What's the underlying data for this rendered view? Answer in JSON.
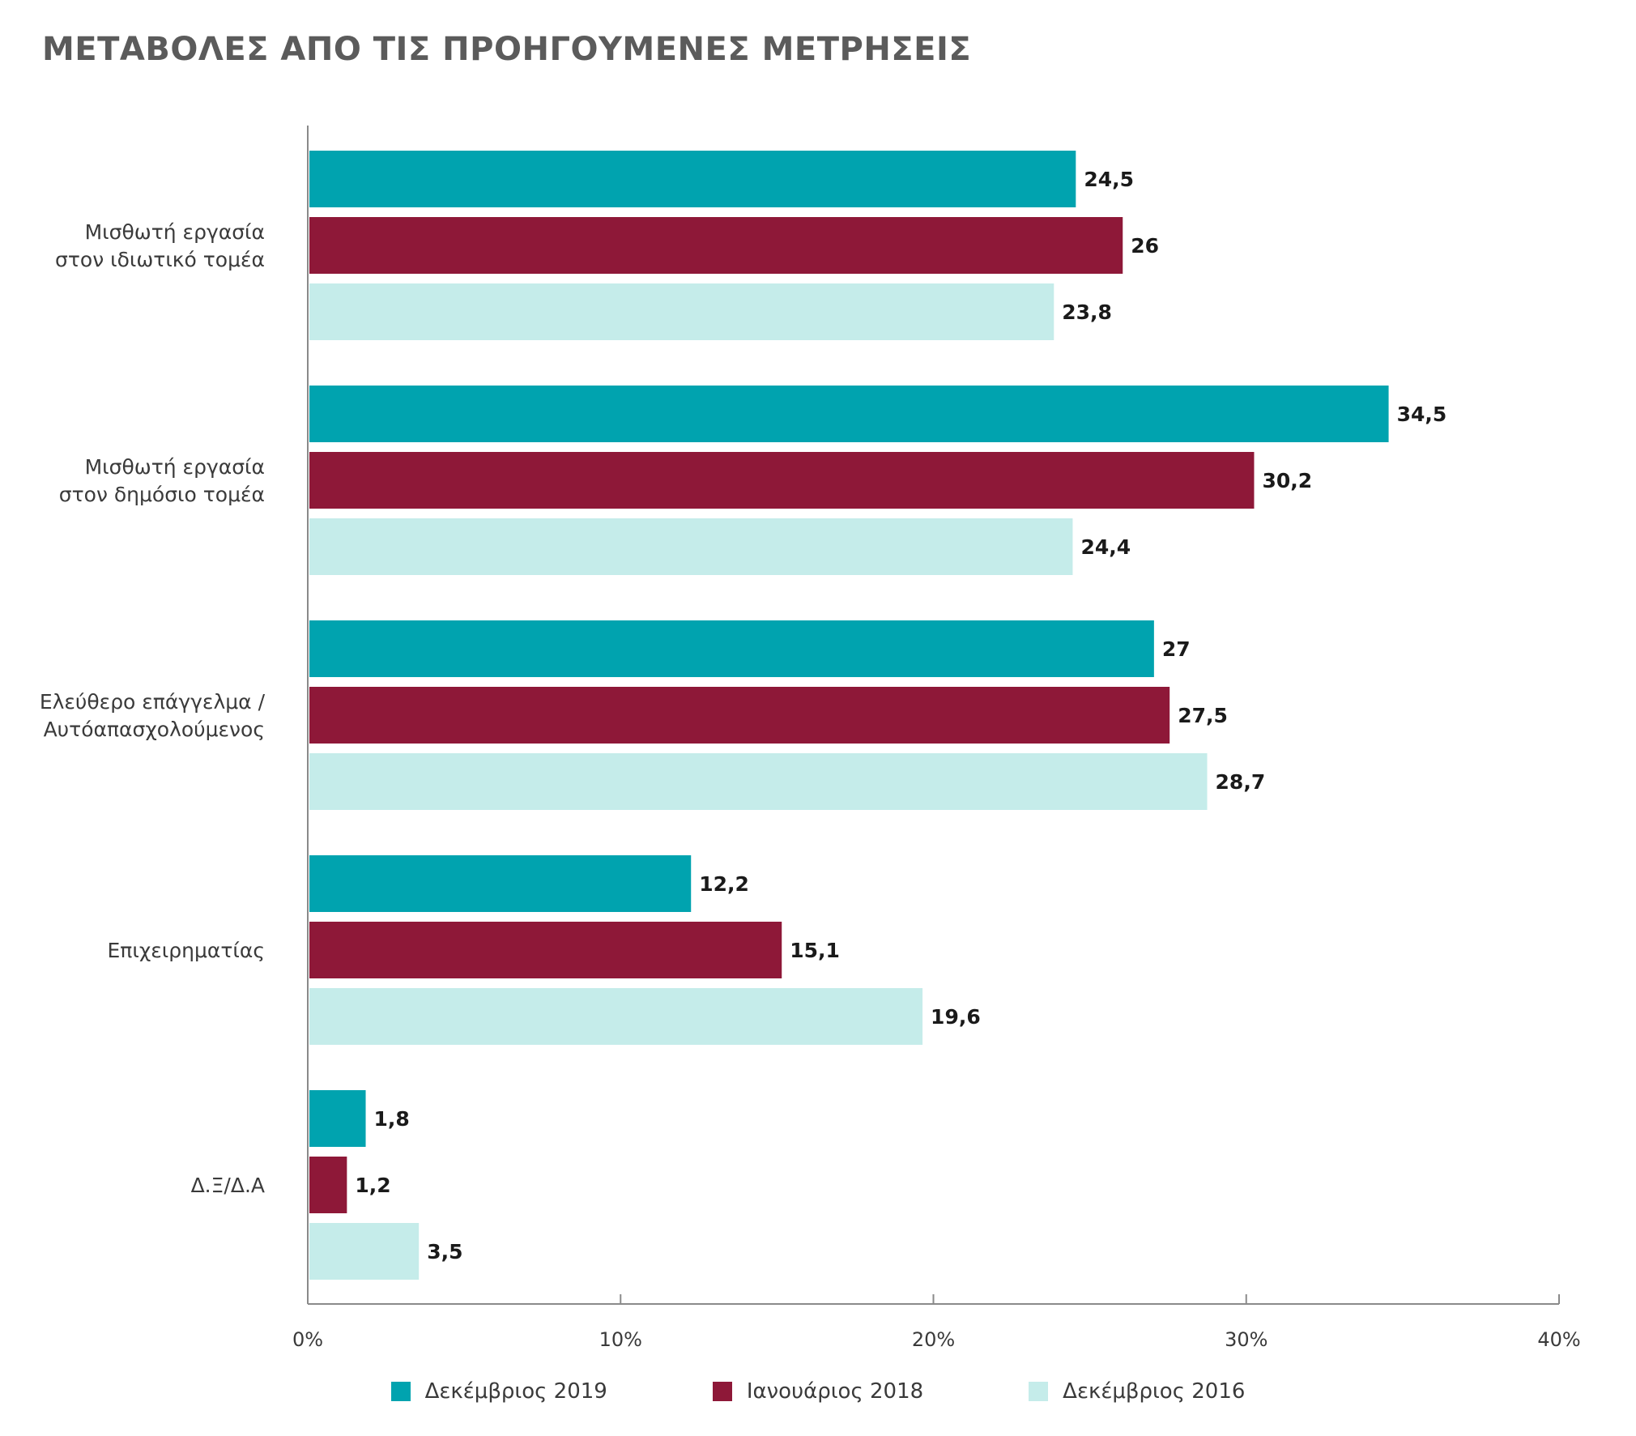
{
  "chart_data": {
    "type": "bar",
    "orientation": "horizontal",
    "title": "ΜΕΤΑΒΟΛΕΣ ΑΠΟ ΤΙΣ ΠΡΟΗΓΟΥΜΕΝΕΣ ΜΕΤΡΗΣΕΙΣ",
    "categories": [
      [
        "Μισθωτή εργασία",
        "στον ιδιωτικό τομέα"
      ],
      [
        "Μισθωτή εργασία",
        "στον δημόσιο τομέα"
      ],
      [
        "Ελεύθερο επάγγελμα /",
        "Αυτόαπασχολούμενος"
      ],
      [
        "Επιχειρηματίας"
      ],
      [
        "Δ.Ξ/Δ.Α"
      ]
    ],
    "series": [
      {
        "name": "Δεκέμβριος 2019",
        "color": "#00a3af",
        "values": [
          24.5,
          34.5,
          27,
          12.2,
          1.8
        ],
        "labels": [
          "24,5",
          "34,5",
          "27",
          "12,2",
          "1,8"
        ]
      },
      {
        "name": "Ιανουάριος 2018",
        "color": "#8e1838",
        "values": [
          26,
          30.2,
          27.5,
          15.1,
          1.2
        ],
        "labels": [
          "26",
          "30,2",
          "27,5",
          "15,1",
          "1,2"
        ]
      },
      {
        "name": "Δεκέμβριος 2016",
        "color": "#c5ecea",
        "values": [
          23.8,
          24.4,
          28.7,
          19.6,
          3.5
        ],
        "labels": [
          "23,8",
          "24,4",
          "28,7",
          "19,6",
          "3,5"
        ]
      }
    ],
    "xlim": [
      0,
      40
    ],
    "x_ticks": [
      0,
      10,
      20,
      30,
      40
    ],
    "x_tick_labels": [
      "0%",
      "10%",
      "20%",
      "30%",
      "40%"
    ],
    "grid": false,
    "legend_position": "bottom"
  }
}
